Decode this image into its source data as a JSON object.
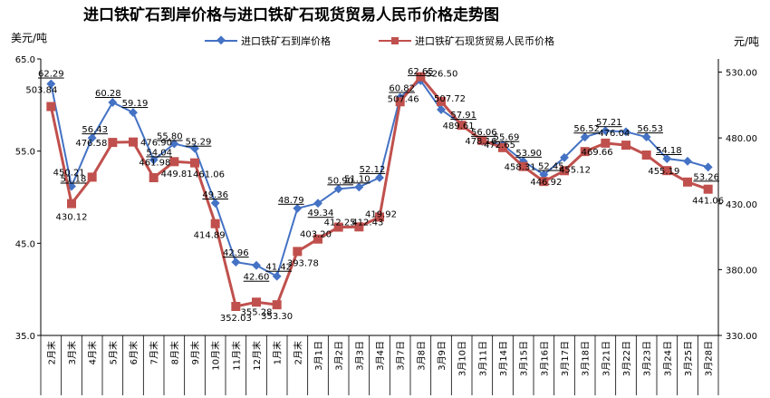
{
  "chart_data": {
    "type": "line",
    "title": "进口铁矿石到岸价格与进口铁矿石现货贸易人民币价格走势图",
    "y_left_unit": "美元/吨",
    "y_right_unit": "元/吨",
    "y_left_range": [
      35.0,
      65.0
    ],
    "y_left_ticks": [
      "65.0",
      "55.0",
      "45.0",
      "35.0"
    ],
    "y_right_range": [
      330.0,
      540.0
    ],
    "y_right_ticks": [
      "530.00",
      "480.00",
      "430.00",
      "380.00",
      "330.00"
    ],
    "grid": false,
    "legend_position": "top",
    "categories": [
      "2月末",
      "3月末",
      "4月末",
      "5月末",
      "6月末",
      "7月末",
      "8月末",
      "9月末",
      "10月末",
      "11月末",
      "12月末",
      "1月末",
      "2月末",
      "3月1日",
      "3月2日",
      "3月3日",
      "3月4日",
      "3月7日",
      "3月8日",
      "3月9日",
      "3月10日",
      "3月11日",
      "3月14日",
      "3月15日",
      "3月16日",
      "3月17日",
      "3月18日",
      "3月21日",
      "3月22日",
      "3月23日",
      "3月24日",
      "3月25日",
      "3月28日"
    ],
    "series": [
      {
        "name": "进口铁矿石到岸价格",
        "axis": "left",
        "color": "#4472C4",
        "marker": "diamond",
        "values": [
          62.29,
          51.18,
          56.43,
          60.28,
          59.19,
          54.04,
          55.8,
          55.29,
          49.36,
          42.96,
          42.6,
          41.42,
          48.79,
          49.34,
          50.9,
          51.1,
          52.12,
          60.82,
          62.65,
          59.5,
          57.91,
          56.06,
          55.69,
          53.9,
          52.45,
          54.3,
          56.52,
          57.21,
          57.1,
          56.53,
          54.18,
          53.9,
          53.26
        ],
        "labels": [
          "62.29",
          "51.18",
          "56.43",
          "60.28",
          "59.19",
          "54.04",
          "55.80",
          "55.29",
          "49.36",
          "42.96",
          "42.60",
          "41.42",
          "48.79",
          "49.34",
          "50.90",
          "51.10",
          "52.12",
          "60.82",
          "62.65",
          "",
          "57.91",
          "56.06",
          "55.69",
          "53.90",
          "52.45",
          "",
          "56.52",
          "57.21",
          "",
          "56.53",
          "54.18",
          "",
          "53.26"
        ]
      },
      {
        "name": "进口铁矿石现货贸易人民币价格",
        "axis": "right",
        "color": "#C0504D",
        "marker": "square",
        "values": [
          503.84,
          430.12,
          450.21,
          476.58,
          476.9,
          449.81,
          461.98,
          461.06,
          414.89,
          352.03,
          355.28,
          353.3,
          393.78,
          403.2,
          412.25,
          412.43,
          419.92,
          507.46,
          526.5,
          507.72,
          489.61,
          478.16,
          472.65,
          458.31,
          446.92,
          455.12,
          469.66,
          476.04,
          474.5,
          467.0,
          455.19,
          446.5,
          441.06
        ],
        "labels": [
          "503.84",
          "430.12",
          "450.21",
          "476.58",
          "476.90",
          "449.81",
          "461.98",
          "461.06",
          "414.89",
          "352.03",
          "355.28",
          "353.30",
          "393.78",
          "403.20",
          "412.25",
          "412.43",
          "419.92",
          "507.46",
          "526.50",
          "507.72",
          "489.61",
          "478.16",
          "472.65",
          "458.31",
          "446.92",
          "455.12",
          "469.66",
          "476.04",
          "",
          "",
          "455.19",
          "",
          "441.06"
        ]
      }
    ]
  }
}
